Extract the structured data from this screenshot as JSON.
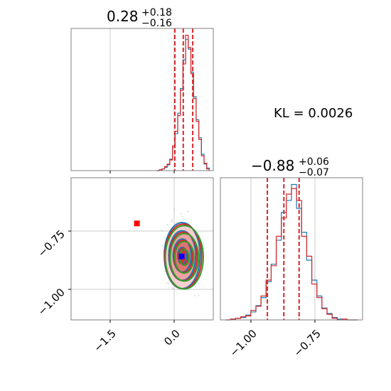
{
  "chart_data": [
    {
      "type": "histogram",
      "panel": "top-left marginal (parameter 1)",
      "title_value": "0.28",
      "title_plus": "+0.18",
      "title_minus": "−0.16",
      "xlim": [
        -1.85,
        0.85
      ],
      "grid": true,
      "bin_centers": [
        -0.2,
        -0.15,
        -0.1,
        -0.05,
        0.0,
        0.05,
        0.1,
        0.15,
        0.2,
        0.25,
        0.3,
        0.35,
        0.4,
        0.45,
        0.5,
        0.55,
        0.6,
        0.65,
        0.7,
        0.75
      ],
      "series": [
        {
          "name": "",
          "color": "#1f77b4",
          "counts": [
            0,
            1,
            2,
            4,
            7,
            14,
            28,
            45,
            70,
            100,
            135,
            160,
            148,
            120,
            90,
            62,
            40,
            20,
            8,
            3
          ]
        },
        {
          "name": "",
          "color": "#d62728",
          "counts": [
            0,
            1,
            2,
            5,
            8,
            13,
            30,
            48,
            67,
            98,
            130,
            165,
            150,
            118,
            88,
            60,
            38,
            18,
            9,
            2
          ]
        }
      ],
      "quantile_lines": [
        0.12,
        0.28,
        0.46
      ],
      "quantile_color": "#d62728"
    },
    {
      "type": "histogram",
      "panel": "bottom-right marginal (parameter 2)",
      "title_value": "−0.88",
      "title_plus": "+0.06",
      "title_minus": "−0.07",
      "xlim": [
        -1.13,
        -0.57
      ],
      "xticks": [
        "−1.00",
        "−0.75"
      ],
      "grid": true,
      "bin_centers": [
        -1.1,
        -1.08,
        -1.06,
        -1.04,
        -1.02,
        -1.0,
        -0.98,
        -0.96,
        -0.94,
        -0.92,
        -0.9,
        -0.88,
        -0.86,
        -0.84,
        -0.82,
        -0.8,
        -0.78,
        -0.76,
        -0.74,
        -0.72,
        -0.7,
        -0.68,
        -0.66,
        -0.64,
        -0.62,
        -0.6
      ],
      "series": [
        {
          "name": "",
          "color": "#1f77b4",
          "counts": [
            0,
            1,
            2,
            3,
            6,
            10,
            18,
            28,
            48,
            70,
            100,
            135,
            150,
            170,
            140,
            110,
            75,
            50,
            30,
            15,
            8,
            3,
            1,
            0,
            0,
            0
          ]
        },
        {
          "name": "",
          "color": "#d62728",
          "counts": [
            0,
            1,
            2,
            4,
            5,
            12,
            17,
            30,
            50,
            68,
            105,
            128,
            158,
            165,
            150,
            105,
            80,
            45,
            28,
            14,
            7,
            2,
            0,
            1,
            0,
            0
          ]
        }
      ],
      "quantile_lines": [
        -0.945,
        -0.88,
        -0.82
      ],
      "quantile_color": "#d62728"
    },
    {
      "type": "scatter-contour",
      "panel": "bottom-left joint distribution",
      "xlim": [
        -1.85,
        0.85
      ],
      "ylim": [
        -1.13,
        -0.57
      ],
      "xticks": [
        "−1.5",
        "0.0"
      ],
      "yticks": [
        "−0.75",
        "−1.00"
      ],
      "grid": true,
      "center": {
        "x": 0.28,
        "y": -0.88
      },
      "contour_levels": [
        0.5,
        1.0,
        1.5,
        2.0
      ],
      "contour_sigma": {
        "x": 0.17,
        "y": 0.065
      },
      "contour_colors": [
        "#1f77b4",
        "#d62728",
        "#2ca02c"
      ],
      "markers": [
        {
          "x": 0.25,
          "y": -0.88,
          "color": "#0000ff",
          "shape": "square"
        },
        {
          "x": -0.6,
          "y": -0.75,
          "color": "#ff0000",
          "shape": "square"
        }
      ]
    }
  ],
  "annotation": "KL = 0.0026"
}
